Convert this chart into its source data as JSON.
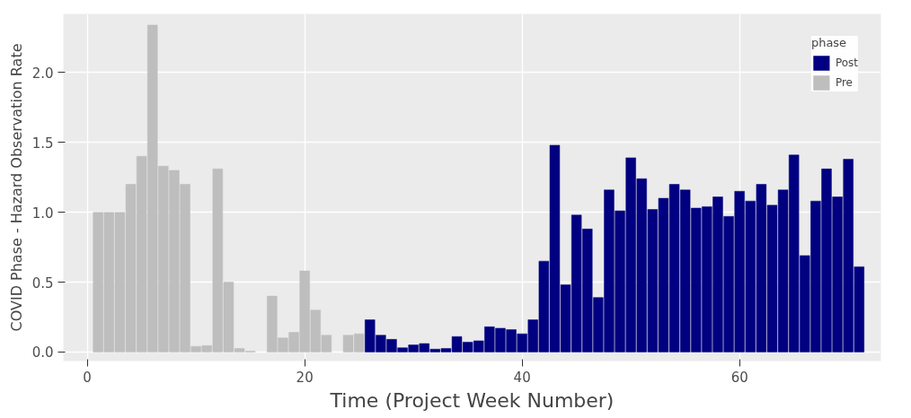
{
  "chart_data": {
    "type": "bar",
    "xlabel": "Time (Project Week Number)",
    "ylabel": "COVID Phase - Hazard Observation Rate",
    "legend_title": "phase",
    "series": [
      {
        "name": "Post",
        "color": "#000080",
        "x": [
          26,
          27,
          28,
          29,
          30,
          31,
          32,
          33,
          34,
          35,
          36,
          37,
          38,
          39,
          40,
          41,
          42,
          43,
          44,
          45,
          46,
          47,
          48,
          49,
          50,
          51,
          52,
          53,
          54,
          55,
          56,
          57,
          58,
          59,
          60,
          61,
          62,
          63,
          64,
          65,
          66,
          67,
          68,
          69,
          70,
          71
        ],
        "values": [
          0.23,
          0.12,
          0.09,
          0.03,
          0.05,
          0.06,
          0.02,
          0.025,
          0.11,
          0.07,
          0.08,
          0.18,
          0.17,
          0.16,
          0.13,
          0.23,
          0.65,
          1.48,
          0.48,
          0.98,
          0.88,
          0.39,
          1.16,
          1.01,
          1.39,
          1.24,
          1.02,
          1.1,
          1.2,
          1.16,
          1.03,
          1.04,
          1.11,
          0.97,
          1.15,
          1.08,
          1.2,
          1.05,
          1.16,
          1.41,
          0.69,
          1.08,
          1.31,
          1.11,
          1.38,
          0.61
        ]
      },
      {
        "name": "Pre",
        "color": "#bebebe",
        "x": [
          1,
          2,
          3,
          4,
          5,
          6,
          7,
          8,
          9,
          10,
          11,
          12,
          13,
          14,
          15,
          17,
          18,
          19,
          20,
          21,
          22,
          24,
          25
        ],
        "values": [
          1.0,
          1.0,
          1.0,
          1.2,
          1.4,
          2.34,
          1.33,
          1.3,
          1.2,
          0.04,
          0.045,
          1.31,
          0.5,
          0.025,
          0.005,
          0.4,
          0.1,
          0.14,
          0.58,
          0.3,
          0.12,
          0.12,
          0.13
        ]
      }
    ],
    "xlim": [
      -2.2,
      73
    ],
    "xticks": [
      0,
      20,
      40,
      60
    ],
    "ylim": [
      -0.065,
      2.42
    ],
    "yticks": [
      {
        "value": 0,
        "label": "0.0"
      },
      {
        "value": 0.5,
        "label": "0.5"
      },
      {
        "value": 1,
        "label": "1.0"
      },
      {
        "value": 1.5,
        "label": "1.5"
      },
      {
        "value": 2,
        "label": "2.0"
      }
    ],
    "grid": true,
    "legend": "top right"
  }
}
